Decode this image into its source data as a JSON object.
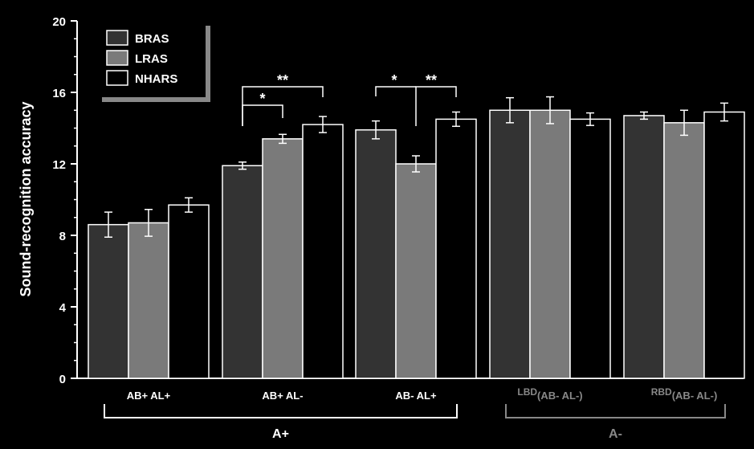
{
  "chart_data": {
    "type": "bar",
    "ylabel": "Sound-recognition accuracy",
    "ylim": [
      0,
      20
    ],
    "yticks": [
      "0",
      "4",
      "8",
      "12",
      "16",
      "20"
    ],
    "legend_position": "top-left",
    "categories": [
      {
        "label": "AB+ AL+"
      },
      {
        "label": "AB+ AL-"
      },
      {
        "label": "AB- AL+"
      },
      {
        "prefix": "LBD",
        "label": "(AB- AL-)"
      },
      {
        "prefix": "RBD",
        "label": "(AB- AL-)"
      }
    ],
    "series": [
      {
        "name": "BRAS",
        "color": "#333333",
        "values": [
          8.6,
          11.9,
          13.9,
          15.0,
          14.7
        ],
        "errors": [
          0.7,
          0.2,
          0.5,
          0.7,
          0.2
        ]
      },
      {
        "name": "LRAS",
        "color": "#7a7a7a",
        "values": [
          8.7,
          13.4,
          12.0,
          15.0,
          14.3
        ],
        "errors": [
          0.75,
          0.25,
          0.45,
          0.75,
          0.7
        ]
      },
      {
        "name": "NHARS",
        "color": "#000000",
        "values": [
          9.7,
          14.2,
          14.5,
          14.5,
          14.9
        ],
        "errors": [
          0.4,
          0.45,
          0.4,
          0.35,
          0.5
        ]
      }
    ],
    "groups": [
      {
        "label": "A+",
        "color": "#ffffff",
        "categories": [
          0,
          1,
          2
        ]
      },
      {
        "label": "A-",
        "color": "#888888",
        "categories": [
          3,
          4
        ]
      }
    ],
    "significance": [
      {
        "category": 1,
        "from": 0,
        "to": 1,
        "label": "*"
      },
      {
        "category": 1,
        "from": 0,
        "to": 2,
        "label": "**"
      },
      {
        "category": 2,
        "from": 0,
        "to": 1,
        "label": "*"
      },
      {
        "category": 2,
        "from": 1,
        "to": 2,
        "label": "**"
      }
    ]
  }
}
